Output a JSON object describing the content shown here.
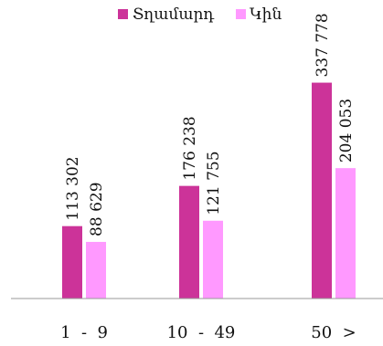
{
  "chart_data": {
    "type": "bar",
    "categories": [
      "1  -  9",
      "10  -  49",
      "50  >"
    ],
    "series": [
      {
        "name": "Տղամարդ",
        "values": [
          113302,
          176238,
          337778
        ],
        "labels": [
          "113 302",
          "176 238",
          "337 778"
        ],
        "color": "#cc3399"
      },
      {
        "name": "Կին",
        "values": [
          88629,
          121755,
          204053
        ],
        "labels": [
          "88 629",
          "121 755",
          "204 053"
        ],
        "color": "#ff99ff"
      }
    ],
    "title": "",
    "xlabel": "",
    "ylabel": "",
    "ylim": [
      0,
      400000
    ],
    "grid": false,
    "legend_position": "top-center"
  }
}
